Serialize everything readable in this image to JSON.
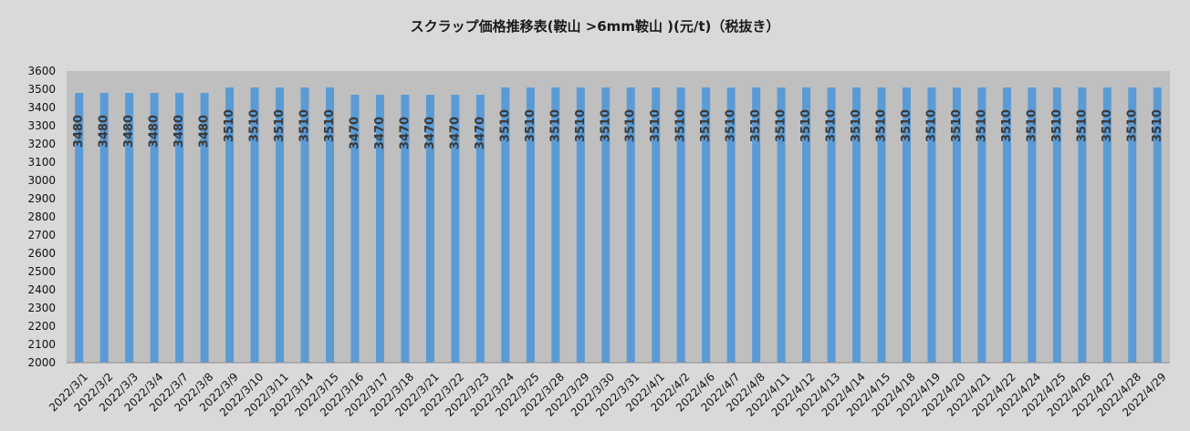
{
  "chart_data": {
    "type": "bar",
    "title": "スクラップ価格推移表(鞍山 >6mm鞍山 )(元/t)（税抜き）",
    "xlabel": "",
    "ylabel": "",
    "ylim": [
      2000,
      3600
    ],
    "yticks": [
      2000,
      2100,
      2200,
      2300,
      2400,
      2500,
      2600,
      2700,
      2800,
      2900,
      3000,
      3100,
      3200,
      3300,
      3400,
      3500,
      3600
    ],
    "grid": false,
    "legend": "none",
    "colors": {
      "bar": "#5b9bd5",
      "plot_bg": "#bfbfbf",
      "page_bg": "#d9d9d9"
    },
    "categories": [
      "2022/3/1",
      "2022/3/2",
      "2022/3/3",
      "2022/3/4",
      "2022/3/7",
      "2022/3/8",
      "2022/3/9",
      "2022/3/10",
      "2022/3/11",
      "2022/3/14",
      "2022/3/15",
      "2022/3/16",
      "2022/3/17",
      "2022/3/18",
      "2022/3/21",
      "2022/3/22",
      "2022/3/23",
      "2022/3/24",
      "2022/3/25",
      "2022/3/28",
      "2022/3/29",
      "2022/3/30",
      "2022/3/31",
      "2022/4/1",
      "2022/4/2",
      "2022/4/6",
      "2022/4/7",
      "2022/4/8",
      "2022/4/11",
      "2022/4/12",
      "2022/4/13",
      "2022/4/14",
      "2022/4/15",
      "2022/4/18",
      "2022/4/19",
      "2022/4/20",
      "2022/4/21",
      "2022/4/22",
      "2022/4/24",
      "2022/4/25",
      "2022/4/26",
      "2022/4/27",
      "2022/4/28",
      "2022/4/29"
    ],
    "values": [
      3480,
      3480,
      3480,
      3480,
      3480,
      3480,
      3510,
      3510,
      3510,
      3510,
      3510,
      3470,
      3470,
      3470,
      3470,
      3470,
      3470,
      3510,
      3510,
      3510,
      3510,
      3510,
      3510,
      3510,
      3510,
      3510,
      3510,
      3510,
      3510,
      3510,
      3510,
      3510,
      3510,
      3510,
      3510,
      3510,
      3510,
      3510,
      3510,
      3510,
      3510,
      3510,
      3510,
      3510
    ]
  }
}
